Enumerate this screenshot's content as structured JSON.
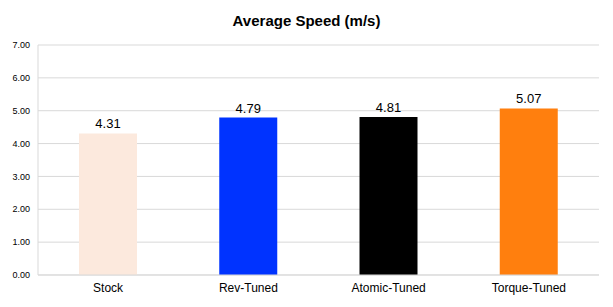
{
  "chart_data": {
    "type": "bar",
    "title": "Average Speed (m/s)",
    "categories": [
      "Stock",
      "Rev-Tuned",
      "Atomic-Tuned",
      "Torque-Tuned"
    ],
    "values": [
      4.31,
      4.79,
      4.81,
      5.07
    ],
    "colors": [
      "#fce9dd",
      "#0033ff",
      "#000000",
      "#ff7f0e"
    ],
    "ylim": [
      0,
      7
    ],
    "yticks": [
      {
        "value": 0,
        "label": "0.00"
      },
      {
        "value": 1,
        "label": "1.00"
      },
      {
        "value": 2,
        "label": "2.00"
      },
      {
        "value": 3,
        "label": "3.00"
      },
      {
        "value": 4,
        "label": "4.00"
      },
      {
        "value": 5,
        "label": "5.00"
      },
      {
        "value": 6,
        "label": "6.00"
      },
      {
        "value": 7,
        "label": "7.00"
      }
    ],
    "grid": true,
    "data_labels": true
  }
}
